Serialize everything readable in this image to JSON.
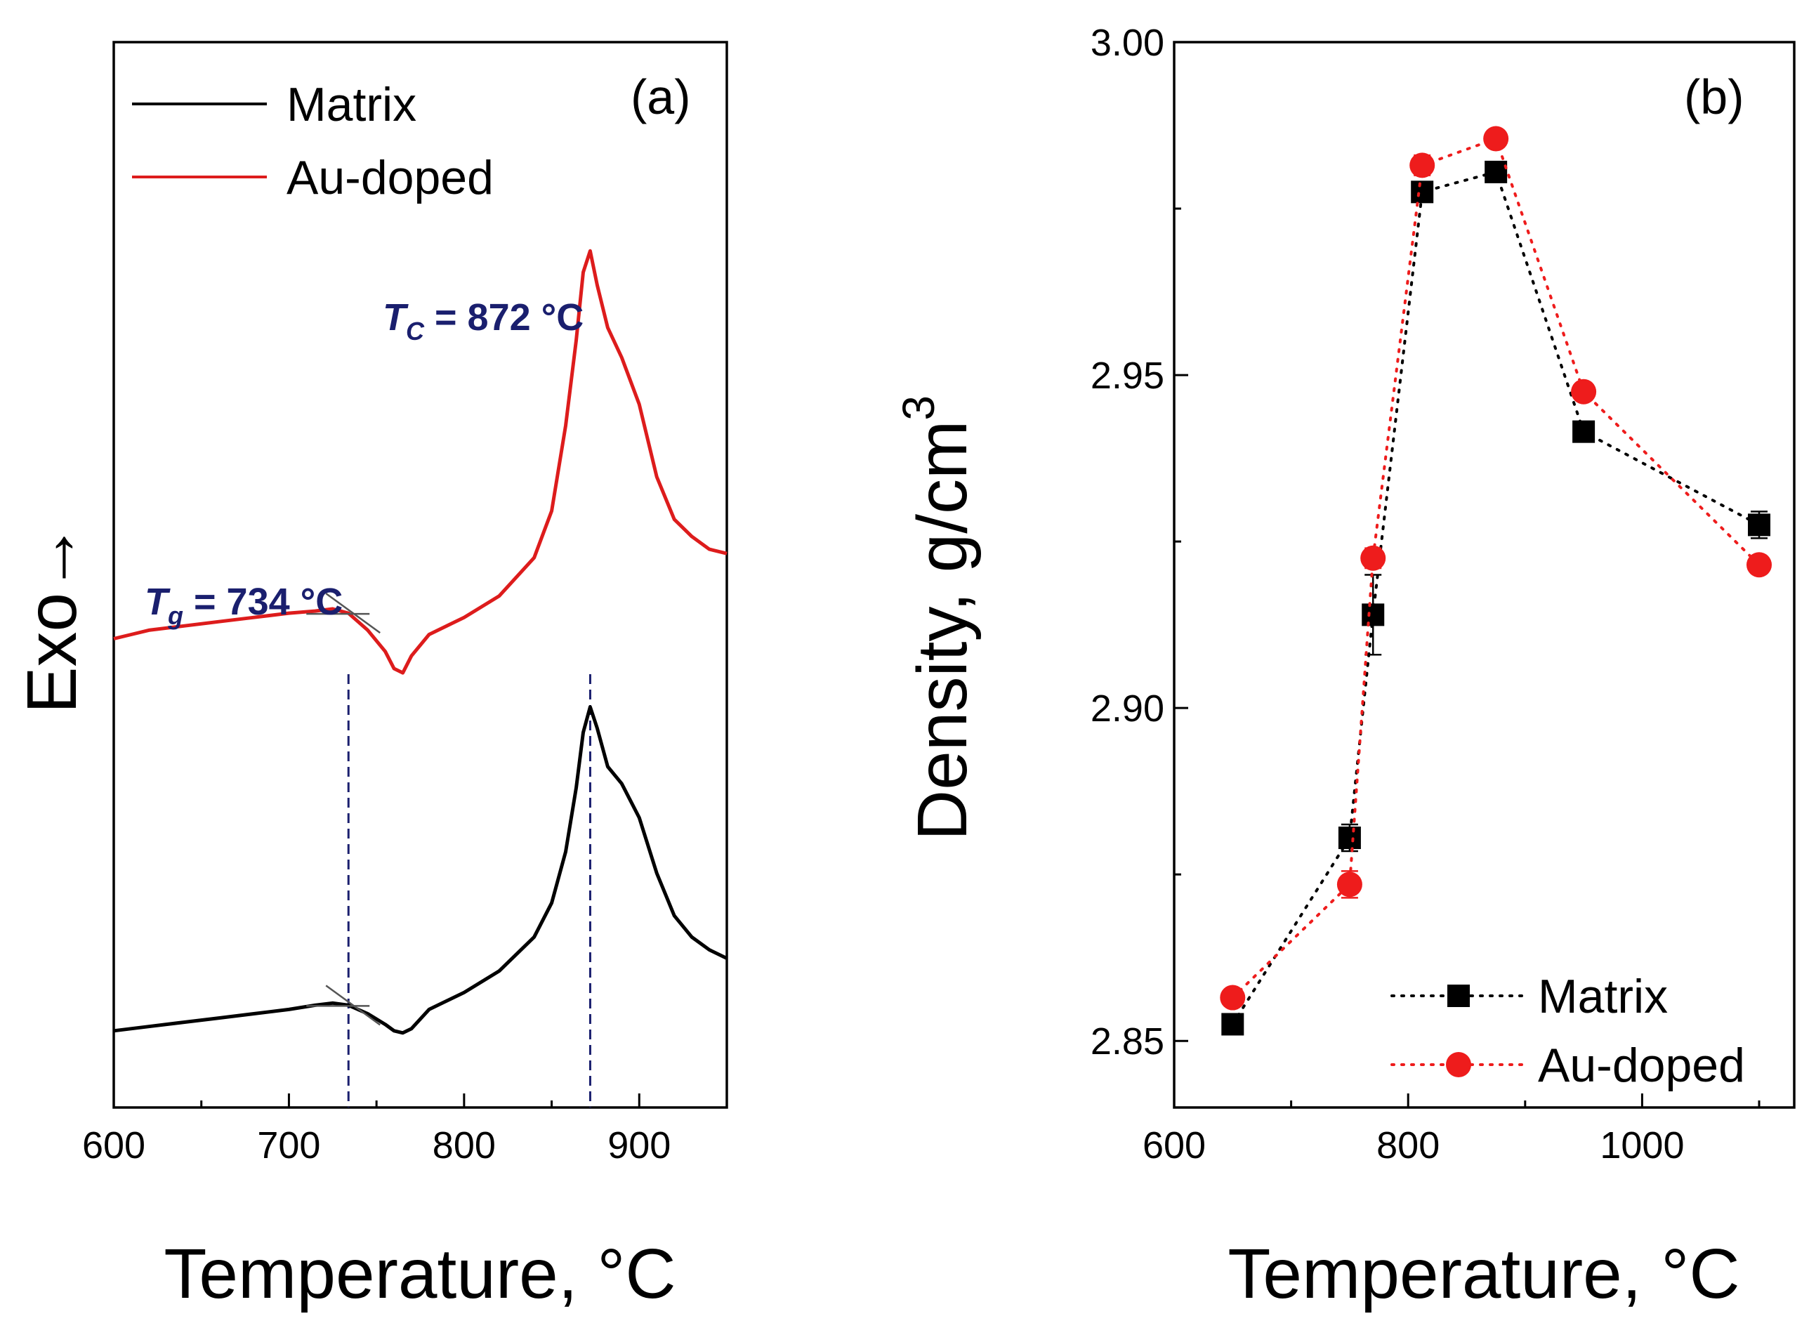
{
  "chart_data": [
    {
      "type": "line",
      "panel_label": "(a)",
      "title": "",
      "xlabel": "Temperature, °C",
      "ylabel": "Exo→",
      "xlim": [
        600,
        950
      ],
      "x_ticks": [
        600,
        700,
        800,
        900
      ],
      "y_ticks_shown": false,
      "grid": false,
      "legend_position": "top-left",
      "series": [
        {
          "name": "Matrix",
          "color": "#000000",
          "x": [
            600,
            620,
            640,
            660,
            680,
            700,
            715,
            725,
            734,
            745,
            755,
            760,
            765,
            770,
            780,
            800,
            820,
            840,
            850,
            858,
            864,
            868,
            872,
            876,
            882,
            890,
            900,
            910,
            920,
            930,
            940,
            950
          ],
          "y": [
            0.08,
            0.09,
            0.1,
            0.11,
            0.12,
            0.13,
            0.14,
            0.145,
            0.14,
            0.12,
            0.095,
            0.08,
            0.075,
            0.085,
            0.13,
            0.17,
            0.22,
            0.3,
            0.38,
            0.5,
            0.65,
            0.78,
            0.84,
            0.79,
            0.7,
            0.66,
            0.58,
            0.45,
            0.35,
            0.3,
            0.27,
            0.25
          ]
        },
        {
          "name": "Au-doped",
          "color": "#dd1c1c",
          "x": [
            600,
            610,
            620,
            640,
            660,
            680,
            700,
            715,
            725,
            734,
            745,
            755,
            760,
            765,
            770,
            780,
            800,
            820,
            840,
            850,
            858,
            864,
            868,
            872,
            876,
            882,
            890,
            900,
            910,
            920,
            930,
            940,
            950
          ],
          "y": [
            1.0,
            1.01,
            1.02,
            1.03,
            1.04,
            1.05,
            1.06,
            1.065,
            1.07,
            1.06,
            1.02,
            0.97,
            0.93,
            0.92,
            0.96,
            1.01,
            1.05,
            1.1,
            1.19,
            1.3,
            1.5,
            1.7,
            1.86,
            1.91,
            1.83,
            1.73,
            1.66,
            1.55,
            1.38,
            1.28,
            1.24,
            1.21,
            1.2
          ]
        }
      ],
      "annotations": [
        {
          "name": "Tg",
          "symbol": "T",
          "subscript": "g",
          "rest": " = 734 °C",
          "x": 734
        },
        {
          "name": "Tc",
          "symbol": "T",
          "subscript": "C",
          "rest": " = 872 °C",
          "x": 872
        }
      ]
    },
    {
      "type": "scatter",
      "panel_label": "(b)",
      "title": "",
      "xlabel": "Temperature, °C",
      "ylabel": "Density, g/cm",
      "ylabel_superscript": "3",
      "xlim": [
        600,
        1130
      ],
      "ylim": [
        2.84,
        3.0
      ],
      "x_ticks": [
        600,
        800,
        1000
      ],
      "x_minor_ticks": [
        700,
        900,
        1100
      ],
      "y_ticks": [
        2.85,
        2.9,
        2.95,
        3.0
      ],
      "y_tick_labels": [
        "2.85",
        "2.90",
        "2.95",
        "3.00"
      ],
      "grid": false,
      "legend_position": "bottom-right",
      "series": [
        {
          "name": "Matrix",
          "marker": "square",
          "color": "#000000",
          "x": [
            650,
            750,
            770,
            812,
            875,
            950,
            1100
          ],
          "y": [
            2.8525,
            2.8805,
            2.914,
            2.9775,
            2.9805,
            2.9415,
            2.9275
          ],
          "err": [
            0.001,
            0.002,
            0.006,
            0.0015,
            0.001,
            0.0012,
            0.002
          ]
        },
        {
          "name": "Au-doped",
          "marker": "circle",
          "color": "#ee1c1c",
          "x": [
            650,
            750,
            770,
            812,
            875,
            950,
            1100
          ],
          "y": [
            2.8565,
            2.8735,
            2.9225,
            2.9815,
            2.9855,
            2.9475,
            2.9215
          ],
          "err": [
            0.001,
            0.002,
            0.0015,
            0.0015,
            0.0012,
            0.001,
            0.0012
          ]
        }
      ]
    }
  ]
}
